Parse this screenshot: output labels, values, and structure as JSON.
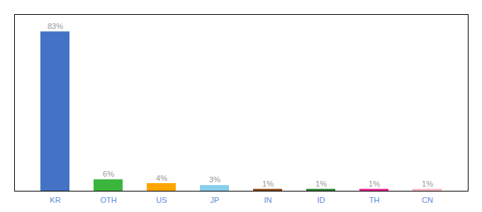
{
  "chart_data": {
    "type": "bar",
    "categories": [
      "KR",
      "OTH",
      "US",
      "JP",
      "IN",
      "ID",
      "TH",
      "CN"
    ],
    "values": [
      83,
      6,
      4,
      3,
      1,
      1,
      1,
      1
    ],
    "value_labels": [
      "83%",
      "6%",
      "4%",
      "3%",
      "1%",
      "1%",
      "1%",
      "1%"
    ],
    "colors": [
      "#4472C4",
      "#3CB53C",
      "#FFA500",
      "#87CEEB",
      "#8B4513",
      "#2E7D32",
      "#E91E8C",
      "#FFB6C1"
    ],
    "ylim": [
      0,
      92
    ],
    "data_labels": true,
    "tick_labels": "x"
  }
}
